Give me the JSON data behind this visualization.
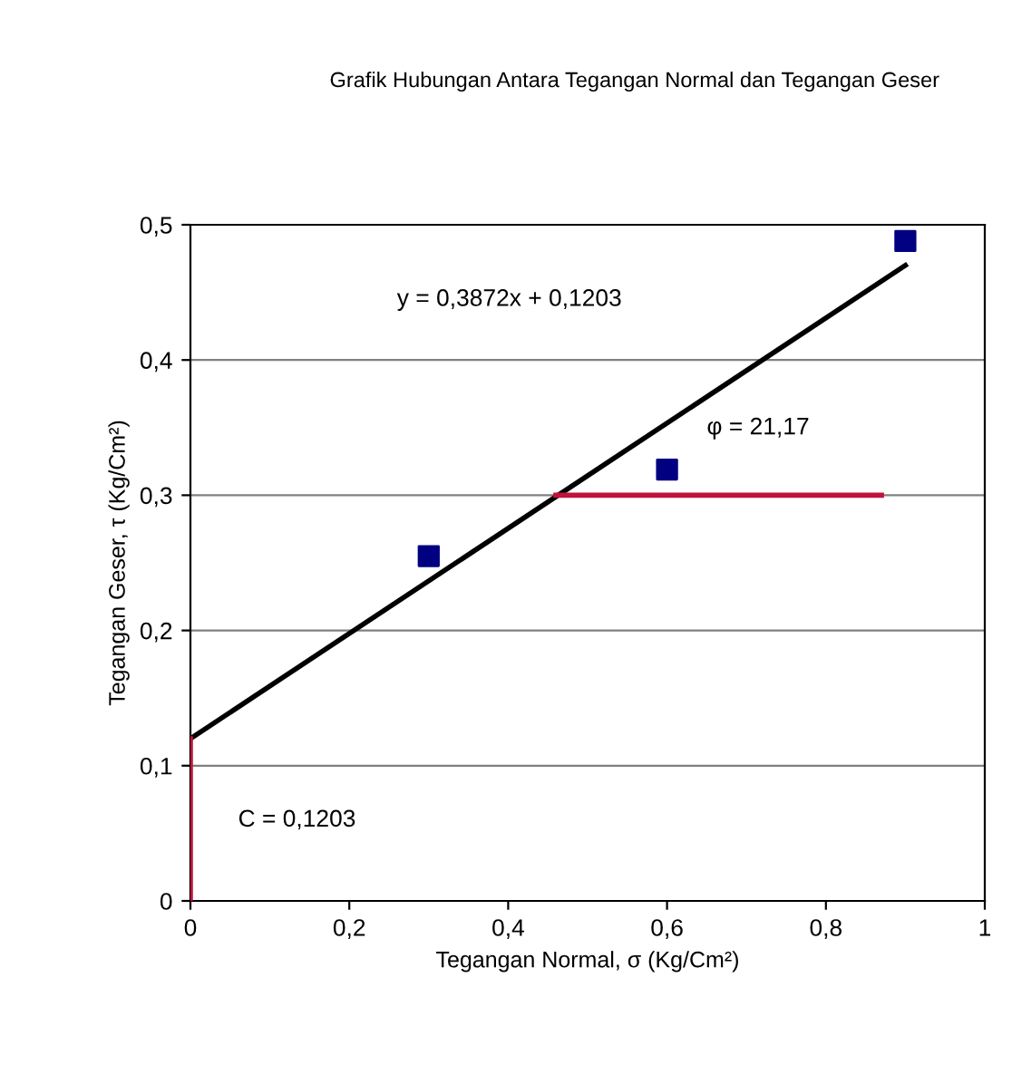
{
  "chart_data": {
    "type": "scatter",
    "title": "Grafik Hubungan Antara Tegangan Normal dan Tegangan Geser",
    "xlabel": "Tegangan Normal, σ (Kg/Cm²)",
    "ylabel": "Tegangan Geser, τ (Kg/Cm²)",
    "series": [
      {
        "color": "#000080",
        "marker": "square",
        "x": [
          0.3,
          0.6,
          0.9
        ],
        "values": [
          0.255,
          0.319,
          0.488
        ]
      },
      {
        "type": "line",
        "color": "#000000",
        "marker": "none",
        "x": [
          0,
          0.9
        ],
        "values": [
          0.12,
          0.47
        ]
      },
      {
        "type": "line",
        "color": "#c0143c",
        "marker": "none",
        "x": [
          0.46,
          0.87
        ],
        "values": [
          0.3,
          0.3
        ]
      },
      {
        "type": "line",
        "color": "#c0143c",
        "marker": "none",
        "x": [
          0,
          0
        ],
        "values": [
          0,
          0.12
        ]
      }
    ],
    "annotations": [
      "y = 0,3872x + 0,1203",
      "φ = 21,17",
      "C = 0,1203"
    ],
    "xlim": [
      0,
      1
    ],
    "xticks": [
      0,
      {
        "value": 0.2,
        "label": "0,2"
      },
      {
        "value": 0.4,
        "label": "0,4"
      },
      {
        "value": 0.6,
        "label": "0,6"
      },
      {
        "value": 0.8,
        "label": "0,8"
      },
      1
    ],
    "ylim": [
      0,
      0.5
    ],
    "yticks": [
      0,
      {
        "value": 0.1,
        "label": "0,1"
      },
      {
        "value": 0.2,
        "label": "0,2"
      },
      {
        "value": 0.3,
        "label": "0,3"
      },
      {
        "value": 0.4,
        "label": "0,4"
      },
      {
        "value": 0.5,
        "label": "0,5"
      }
    ],
    "grid": "y"
  }
}
